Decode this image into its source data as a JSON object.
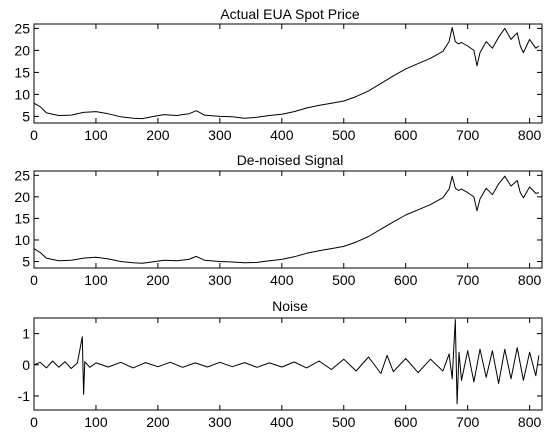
{
  "chart_data": [
    {
      "type": "line",
      "title": "Actual EUA Spot Price",
      "xlim": [
        0,
        820
      ],
      "ylim": [
        3.5,
        26
      ],
      "xticks": [
        0,
        100,
        200,
        300,
        400,
        500,
        600,
        700,
        800
      ],
      "yticks": [
        5,
        10,
        15,
        20,
        25
      ],
      "grid": false,
      "series": [
        {
          "x": [
            0,
            10,
            20,
            40,
            60,
            80,
            100,
            120,
            140,
            160,
            175,
            190,
            210,
            230,
            250,
            262,
            275,
            300,
            320,
            340,
            360,
            380,
            400,
            420,
            440,
            460,
            480,
            500,
            520,
            540,
            560,
            580,
            600,
            620,
            640,
            660,
            670,
            675,
            680,
            685,
            690,
            700,
            710,
            715,
            720,
            730,
            740,
            750,
            760,
            770,
            780,
            785,
            790,
            800,
            810,
            815
          ],
          "y": [
            8,
            7.2,
            5.8,
            5.2,
            5.3,
            5.9,
            6.1,
            5.6,
            4.9,
            4.6,
            4.5,
            4.9,
            5.4,
            5.2,
            5.6,
            6.3,
            5.3,
            5.0,
            4.9,
            4.6,
            4.8,
            5.2,
            5.5,
            6.1,
            6.9,
            7.5,
            8.0,
            8.5,
            9.5,
            10.8,
            12.5,
            14.2,
            15.8,
            17.0,
            18.2,
            19.8,
            22.0,
            25.2,
            22.0,
            21.5,
            21.8,
            21.0,
            20.0,
            16.5,
            19.5,
            22.0,
            20.5,
            23.0,
            25.0,
            22.5,
            24.0,
            21.0,
            19.5,
            22.5,
            20.5,
            21.0
          ]
        }
      ]
    },
    {
      "type": "line",
      "title": "De-noised Signal",
      "xlim": [
        0,
        820
      ],
      "ylim": [
        3.5,
        26
      ],
      "xticks": [
        0,
        100,
        200,
        300,
        400,
        500,
        600,
        700,
        800
      ],
      "yticks": [
        5,
        10,
        15,
        20,
        25
      ],
      "grid": false,
      "series": [
        {
          "x": [
            0,
            10,
            20,
            40,
            60,
            80,
            100,
            120,
            140,
            160,
            175,
            190,
            210,
            230,
            250,
            262,
            275,
            300,
            320,
            340,
            360,
            380,
            400,
            420,
            440,
            460,
            480,
            500,
            520,
            540,
            560,
            580,
            600,
            620,
            640,
            660,
            670,
            675,
            680,
            685,
            690,
            700,
            710,
            715,
            720,
            730,
            740,
            750,
            760,
            770,
            780,
            785,
            790,
            800,
            810,
            815
          ],
          "y": [
            8,
            7.1,
            5.8,
            5.2,
            5.3,
            5.8,
            6.0,
            5.6,
            5.0,
            4.7,
            4.6,
            4.9,
            5.3,
            5.2,
            5.5,
            6.2,
            5.3,
            5.0,
            4.9,
            4.7,
            4.8,
            5.2,
            5.5,
            6.1,
            6.9,
            7.5,
            8.0,
            8.5,
            9.5,
            10.8,
            12.5,
            14.2,
            15.8,
            17.0,
            18.2,
            19.8,
            21.8,
            24.8,
            22.0,
            21.5,
            21.8,
            21.0,
            20.0,
            16.8,
            19.5,
            22.0,
            20.5,
            23.0,
            24.8,
            22.5,
            23.8,
            21.0,
            19.8,
            22.3,
            20.8,
            21.0
          ]
        }
      ]
    },
    {
      "type": "line",
      "title": "Noise",
      "xlim": [
        0,
        820
      ],
      "ylim": [
        -1.45,
        1.5
      ],
      "xticks": [
        0,
        100,
        200,
        300,
        400,
        500,
        600,
        700,
        800
      ],
      "yticks": [
        -1,
        0,
        1
      ],
      "grid": false,
      "series": [
        {
          "x": [
            0,
            10,
            20,
            30,
            40,
            50,
            60,
            70,
            78,
            80,
            82,
            90,
            100,
            120,
            140,
            160,
            180,
            200,
            220,
            240,
            260,
            280,
            300,
            320,
            340,
            360,
            380,
            400,
            420,
            440,
            460,
            480,
            500,
            520,
            540,
            560,
            570,
            580,
            600,
            620,
            640,
            660,
            670,
            675,
            680,
            683,
            686,
            690,
            700,
            710,
            720,
            730,
            740,
            750,
            760,
            770,
            780,
            790,
            800,
            810,
            815
          ],
          "y": [
            0,
            0.08,
            -0.1,
            0.12,
            -0.08,
            0.1,
            -0.12,
            0.06,
            0.9,
            -0.95,
            0.1,
            -0.08,
            0.06,
            -0.07,
            0.08,
            -0.1,
            0.07,
            -0.06,
            0.08,
            -0.08,
            0.06,
            -0.07,
            0.08,
            -0.06,
            0.07,
            -0.08,
            0.06,
            -0.07,
            0.09,
            -0.1,
            0.12,
            -0.15,
            0.18,
            -0.2,
            0.25,
            -0.28,
            0.3,
            -0.22,
            0.2,
            -0.25,
            0.18,
            -0.2,
            0.35,
            -0.45,
            1.45,
            -1.25,
            0.4,
            -0.5,
            0.45,
            -0.55,
            0.5,
            -0.4,
            0.45,
            -0.6,
            0.5,
            -0.45,
            0.55,
            -0.5,
            0.4,
            -0.35,
            0.3
          ]
        }
      ]
    }
  ]
}
